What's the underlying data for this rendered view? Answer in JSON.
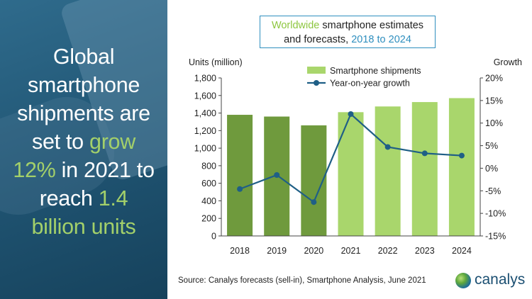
{
  "headline": {
    "line1": "Global",
    "line2": "smartphone",
    "line3": "shipments are",
    "line4_pre": "set to ",
    "line4_hl": "grow",
    "line5_hl": "12%",
    "line5_post": " in 2021 to",
    "line6_pre": "reach ",
    "line6_hl": "1.4",
    "line7_hl": "billion units"
  },
  "title": {
    "part1_accent": "Worldwide",
    "part1_rest": " smartphone estimates",
    "part2_pre": "and forecasts, ",
    "part2_accent": "2018 to 2024"
  },
  "source": "Source: Canalys forecasts (sell-in), Smartphone Analysis, June 2021",
  "logo_text": "canalys",
  "colors": {
    "bar_actual": "#6f9a3d",
    "bar_forecast": "#a9d66c",
    "line": "#1f5f86",
    "accent_green": "#8dc63f",
    "accent_blue": "#2f8fbf"
  },
  "chart_data": {
    "type": "bar",
    "categories": [
      "2018",
      "2019",
      "2020",
      "2021",
      "2022",
      "2023",
      "2024"
    ],
    "series": [
      {
        "name": "Smartphone shipments",
        "type": "bar",
        "axis": "left",
        "values": [
          1380,
          1360,
          1260,
          1410,
          1475,
          1525,
          1570
        ]
      },
      {
        "name": "Year-on-year growth",
        "type": "line",
        "axis": "right",
        "values": [
          -4.6,
          -1.5,
          -7.5,
          12.0,
          4.7,
          3.3,
          2.8
        ]
      }
    ],
    "forecast_from": "2021",
    "y_left": {
      "label": "Units (million)",
      "ylim": [
        0,
        1800
      ],
      "ticks": [
        "0",
        "200",
        "400",
        "600",
        "800",
        "1,000",
        "1,200",
        "1,400",
        "1,600",
        "1,800"
      ]
    },
    "y_right": {
      "label": "Growth",
      "ylim": [
        -15,
        20
      ],
      "ticks": [
        "-15%",
        "-10%",
        "-5%",
        "0%",
        "5%",
        "10%",
        "15%",
        "20%"
      ]
    },
    "legend": [
      "Smartphone shipments",
      "Year-on-year growth"
    ],
    "legend_placement": "top-center",
    "grid": false
  }
}
